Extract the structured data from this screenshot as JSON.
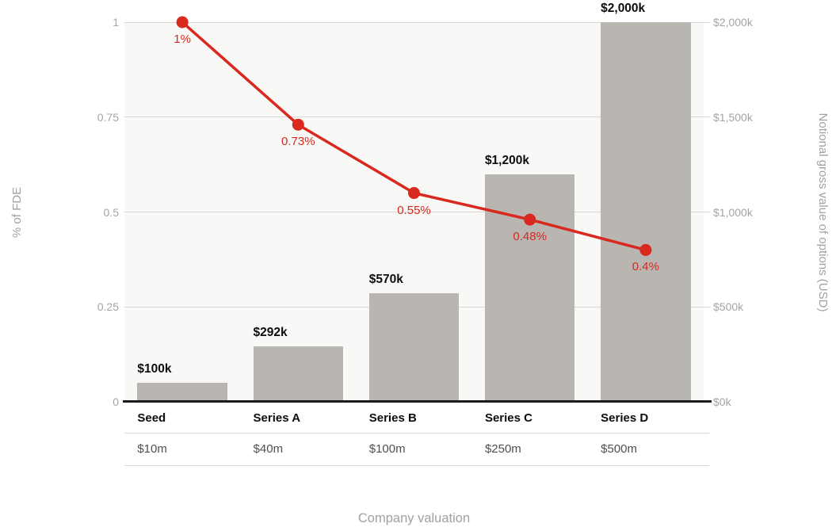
{
  "chart_data": {
    "type": "bar+line",
    "title": "",
    "x_axis_title": "Company valuation",
    "left_axis": {
      "title": "% of FDE",
      "range": [
        0,
        1
      ],
      "ticks": [
        {
          "value": 1,
          "label": "1"
        },
        {
          "value": 0.75,
          "label": "0.75"
        },
        {
          "value": 0.5,
          "label": "0.5"
        },
        {
          "value": 0.25,
          "label": "0.25"
        },
        {
          "value": 0,
          "label": "0"
        }
      ]
    },
    "right_axis": {
      "title": "Notional gross value of options (USD)",
      "range_usd_k": [
        0,
        2000
      ],
      "ticks": [
        {
          "value": 2000,
          "label": "$2,000k"
        },
        {
          "value": 1500,
          "label": "$1,500k"
        },
        {
          "value": 1000,
          "label": "$1,000k"
        },
        {
          "value": 500,
          "label": "$500k"
        },
        {
          "value": 0,
          "label": "$0k"
        }
      ]
    },
    "categories": [
      {
        "stage": "Seed",
        "valuation": "$10m",
        "bar_value_usd_k": 100,
        "bar_label": "$100k",
        "line_value_pct": 1,
        "line_label": "1%"
      },
      {
        "stage": "Series A",
        "valuation": "$40m",
        "bar_value_usd_k": 292,
        "bar_label": "$292k",
        "line_value_pct": 0.73,
        "line_label": "0.73%"
      },
      {
        "stage": "Series B",
        "valuation": "$100m",
        "bar_value_usd_k": 570,
        "bar_label": "$570k",
        "line_value_pct": 0.55,
        "line_label": "0.55%"
      },
      {
        "stage": "Series C",
        "valuation": "$250m",
        "bar_value_usd_k": 1200,
        "bar_label": "$1,200k",
        "line_value_pct": 0.48,
        "line_label": "0.48%"
      },
      {
        "stage": "Series D",
        "valuation": "$500m",
        "bar_value_usd_k": 2000,
        "bar_label": "$2,000k",
        "line_value_pct": 0.4,
        "line_label": "0.4%"
      }
    ],
    "legend": null,
    "grid": "horizontal",
    "colors": {
      "bar": "#b9b5b1",
      "line": "#d9281d",
      "plot_background": "#f8f8f6",
      "gridline": "#dcdad8",
      "tick_text": "#a6a4a4",
      "axis_title_text": "#a2a0a0",
      "bar_label_text": "#0d0d0d",
      "stage_text": "#0d0d0d",
      "valuation_text": "#4f4f4f",
      "zero_axis": "#1c1b1a"
    }
  }
}
